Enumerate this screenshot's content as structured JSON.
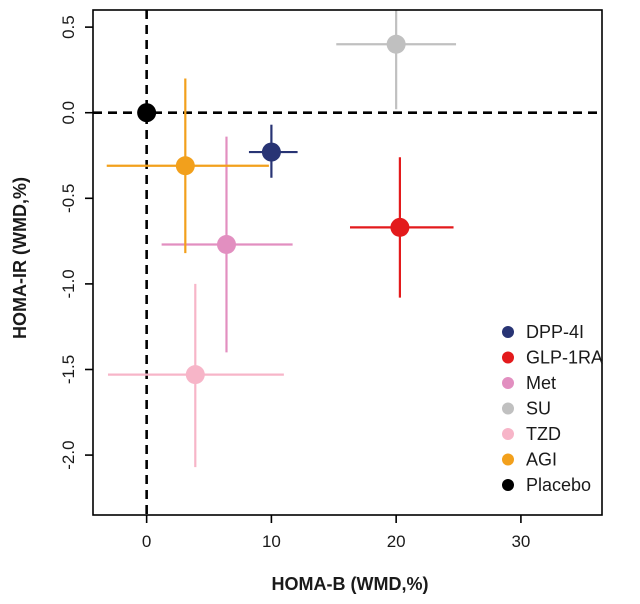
{
  "chart_data": {
    "type": "scatter",
    "title": "",
    "xlabel": "HOMA-B (WMD,%)",
    "ylabel": "HOMA-IR (WMD,%)",
    "xlim": [
      -4.3,
      36.5
    ],
    "ylim": [
      -2.35,
      0.6
    ],
    "xticks": [
      0,
      10,
      20,
      30
    ],
    "xtick_labels": [
      "0",
      "10",
      "20",
      "30"
    ],
    "yticks": [
      0.5,
      0.0,
      -0.5,
      -1.0,
      -1.5,
      -2.0
    ],
    "ytick_labels": [
      "0.5",
      "0.0",
      "-0.5",
      "-1.0",
      "-1.5",
      "-2.0"
    ],
    "reference_lines": {
      "x": 0,
      "y": 0,
      "style": "dashed"
    },
    "grid": false,
    "legend_position": "bottom-right",
    "series": [
      {
        "name": "DPP-4I",
        "color": "#283474",
        "x": 10.0,
        "y": -0.23,
        "x_ci": [
          8.2,
          12.1
        ],
        "y_ci": [
          -0.38,
          -0.07
        ]
      },
      {
        "name": "GLP-1RA",
        "color": "#e31a1c",
        "x": 20.3,
        "y": -0.67,
        "x_ci": [
          16.3,
          24.6
        ],
        "y_ci": [
          -1.08,
          -0.26
        ]
      },
      {
        "name": "Met",
        "color": "#e28fc0",
        "x": 6.4,
        "y": -0.77,
        "x_ci": [
          1.2,
          11.7
        ],
        "y_ci": [
          -1.4,
          -0.14
        ]
      },
      {
        "name": "SU",
        "color": "#c0c0c0",
        "x": 20.0,
        "y": 0.4,
        "x_ci": [
          15.2,
          24.8
        ],
        "y_ci": [
          0.02,
          0.6
        ]
      },
      {
        "name": "TZD",
        "color": "#f7b5c8",
        "x": 3.9,
        "y": -1.53,
        "x_ci": [
          -3.1,
          11.0
        ],
        "y_ci": [
          -2.07,
          -1.0
        ]
      },
      {
        "name": "AGI",
        "color": "#f2a01c",
        "x": 3.1,
        "y": -0.31,
        "x_ci": [
          -3.2,
          9.8
        ],
        "y_ci": [
          -0.82,
          0.2
        ]
      },
      {
        "name": "Placebo",
        "color": "#000000",
        "x": 0.0,
        "y": 0.0,
        "x_ci": null,
        "y_ci": null
      }
    ]
  }
}
